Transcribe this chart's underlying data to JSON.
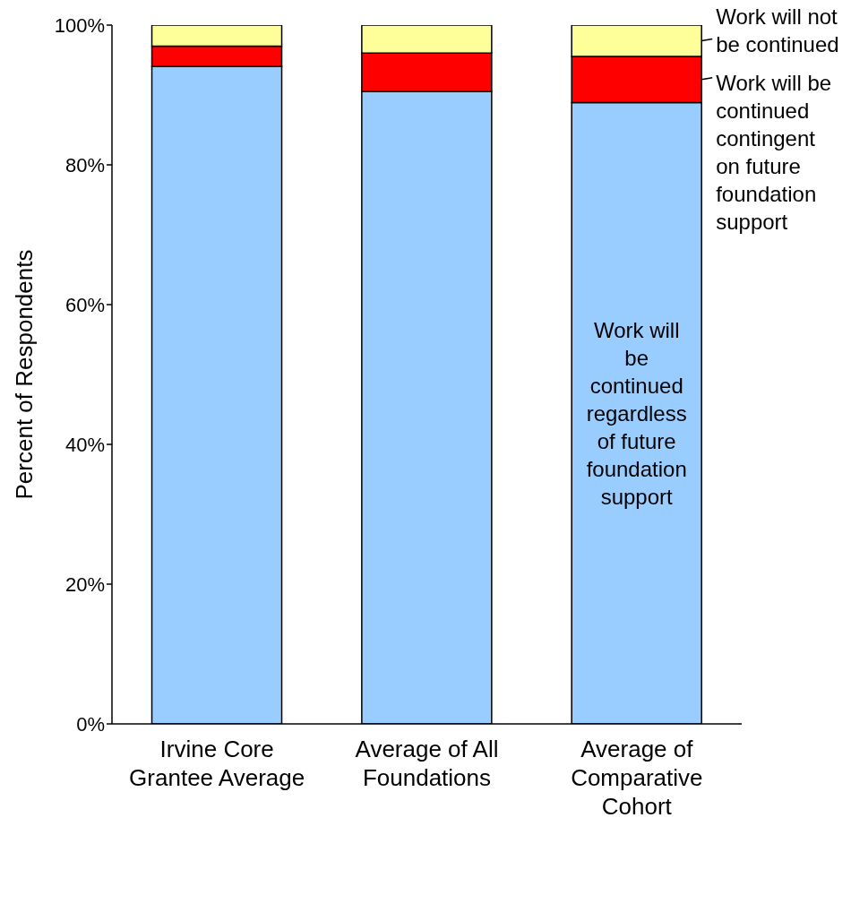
{
  "chart_data": {
    "type": "bar",
    "stacked": true,
    "ylabel": "Percent of Respondents",
    "categories": [
      "Irvine Core Grantee Average",
      "Average of All Foundations",
      "Average of Comparative Cohort"
    ],
    "series": [
      {
        "name": "Work will be continued regardless of future foundation support",
        "color": "#99ccff",
        "values": [
          94.1,
          90.5,
          88.9
        ]
      },
      {
        "name": "Work will be continued contingent on future foundation support",
        "color": "#ff0000",
        "values": [
          2.9,
          5.5,
          6.6
        ]
      },
      {
        "name": "Work will not be continued",
        "color": "#ffff99",
        "values": [
          3.0,
          4.0,
          4.5
        ]
      }
    ],
    "ylim": [
      0,
      100
    ],
    "yticks": [
      {
        "value": 0,
        "label": "0%"
      },
      {
        "value": 20,
        "label": "20%"
      },
      {
        "value": 40,
        "label": "40%"
      },
      {
        "value": 60,
        "label": "60%"
      },
      {
        "value": 80,
        "label": "80%"
      },
      {
        "value": 100,
        "label": "100%"
      }
    ],
    "grid": false,
    "legend": "right"
  }
}
